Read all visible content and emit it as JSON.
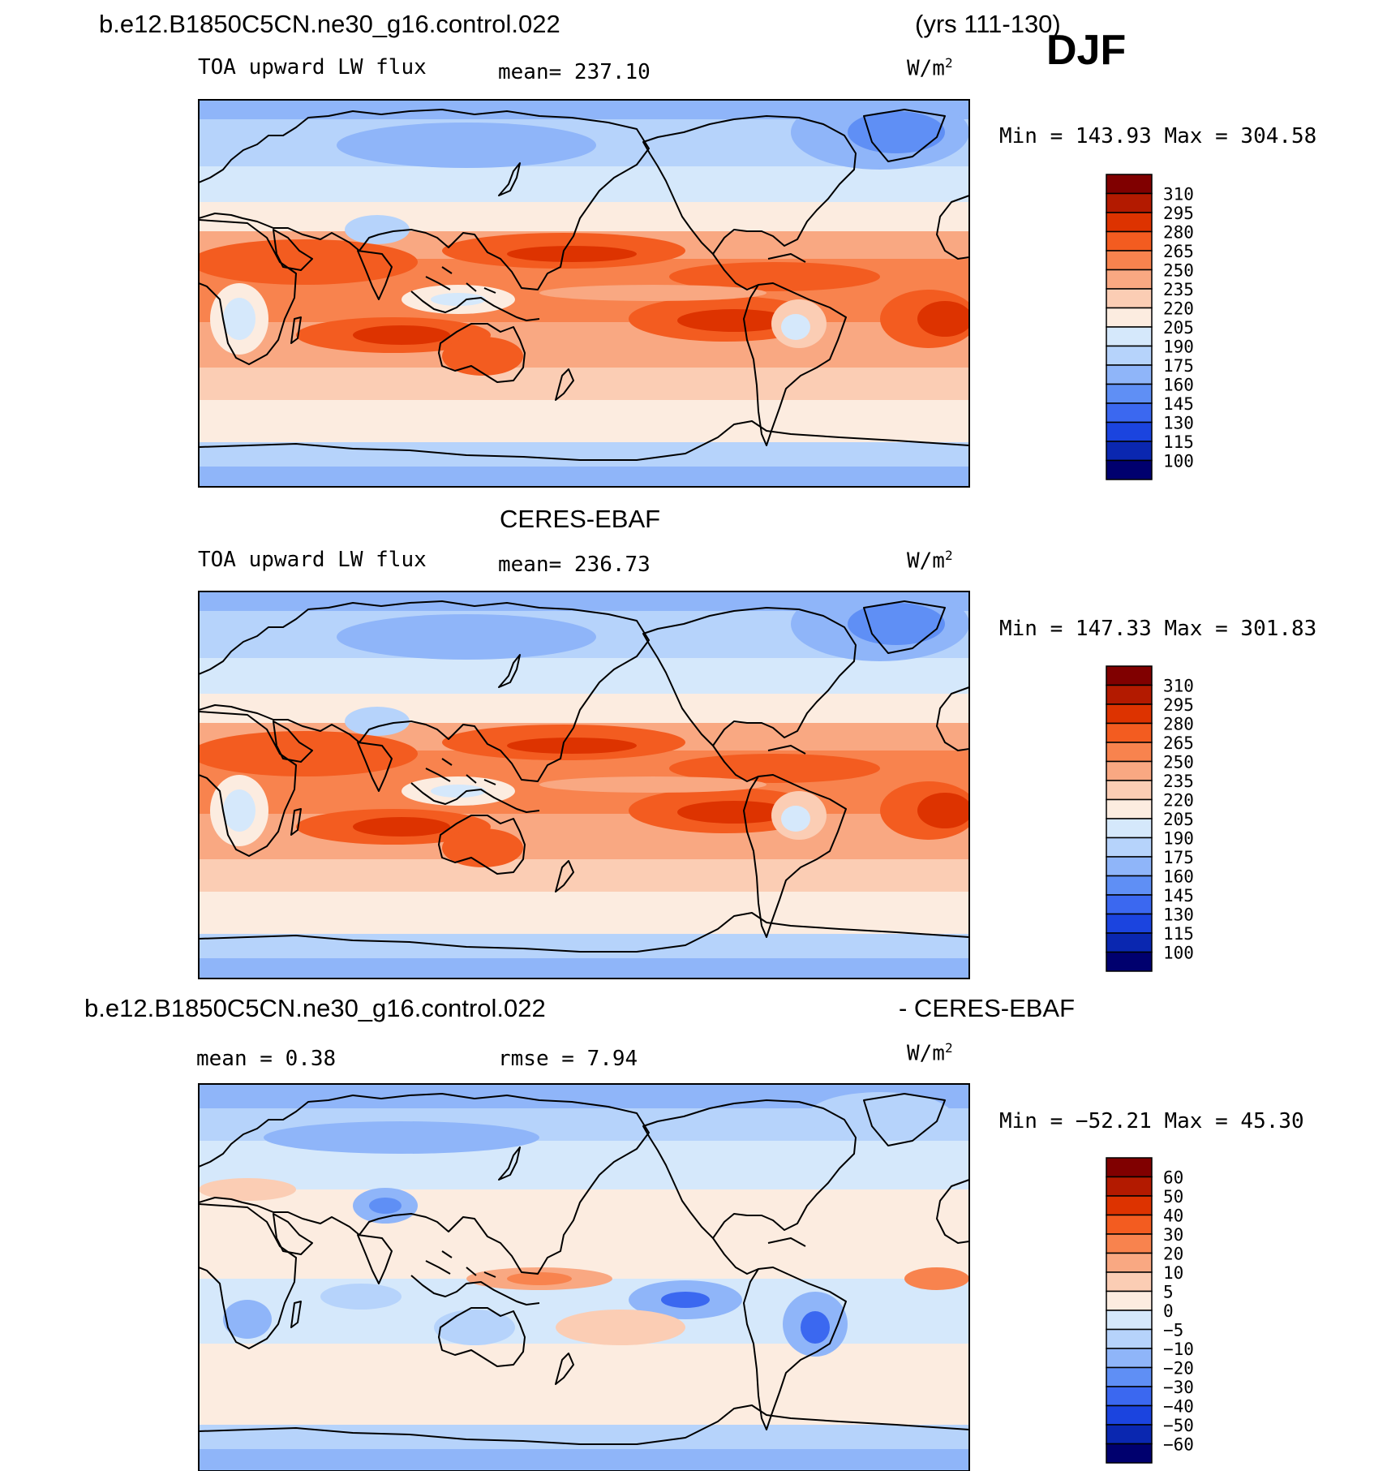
{
  "header": {
    "case_name": "b.e12.B1850C5CN.ne30_g16.control.022",
    "years": "(yrs 111-130)",
    "season": "DJF"
  },
  "colors": {
    "levels_abs": [
      "#800000",
      "#b31a00",
      "#dd3300",
      "#f35c20",
      "#f8834e",
      "#f9a882",
      "#fbcdb4",
      "#fcece0",
      "#d5e8fb",
      "#b6d3fb",
      "#8fb5f9",
      "#5f8ff5",
      "#3b68f0",
      "#1b44df",
      "#0a27b0",
      "#00006e"
    ],
    "levels_diff": [
      "#800000",
      "#b31a00",
      "#dd3300",
      "#f35c20",
      "#f8834e",
      "#f9a882",
      "#fbcdb4",
      "#fcece0",
      "#d5e8fb",
      "#b6d3fb",
      "#8fb5f9",
      "#5f8ff5",
      "#3b68f0",
      "#1b44df",
      "#0a27b0",
      "#00006e"
    ]
  },
  "panels": [
    {
      "id": "model",
      "variable": "TOA upward LW flux",
      "mean_text": "mean= 237.10",
      "units": "W/m",
      "units_exp": "2",
      "minmax": "Min = 143.93 Max = 304.58",
      "labelbar": [
        "310",
        "295",
        "280",
        "265",
        "250",
        "235",
        "220",
        "205",
        "190",
        "175",
        "160",
        "145",
        "130",
        "115",
        "100"
      ]
    },
    {
      "id": "obs",
      "title": "CERES-EBAF",
      "variable": "TOA upward LW flux",
      "mean_text": "mean= 236.73",
      "units": "W/m",
      "units_exp": "2",
      "minmax": "Min = 147.33 Max = 301.83",
      "labelbar": [
        "310",
        "295",
        "280",
        "265",
        "250",
        "235",
        "220",
        "205",
        "190",
        "175",
        "160",
        "145",
        "130",
        "115",
        "100"
      ]
    },
    {
      "id": "diff",
      "title_left": "b.e12.B1850C5CN.ne30_g16.control.022",
      "title_right": "- CERES-EBAF",
      "mean_text": "mean =    0.38",
      "rmse_text": "rmse =    7.94",
      "units": "W/m",
      "units_exp": "2",
      "minmax": "Min = −52.21 Max =  45.30",
      "labelbar": [
        "60",
        "50",
        "40",
        "30",
        "20",
        "10",
        "5",
        "0",
        "−5",
        "−10",
        "−20",
        "−30",
        "−40",
        "−50",
        "−60"
      ]
    }
  ]
}
